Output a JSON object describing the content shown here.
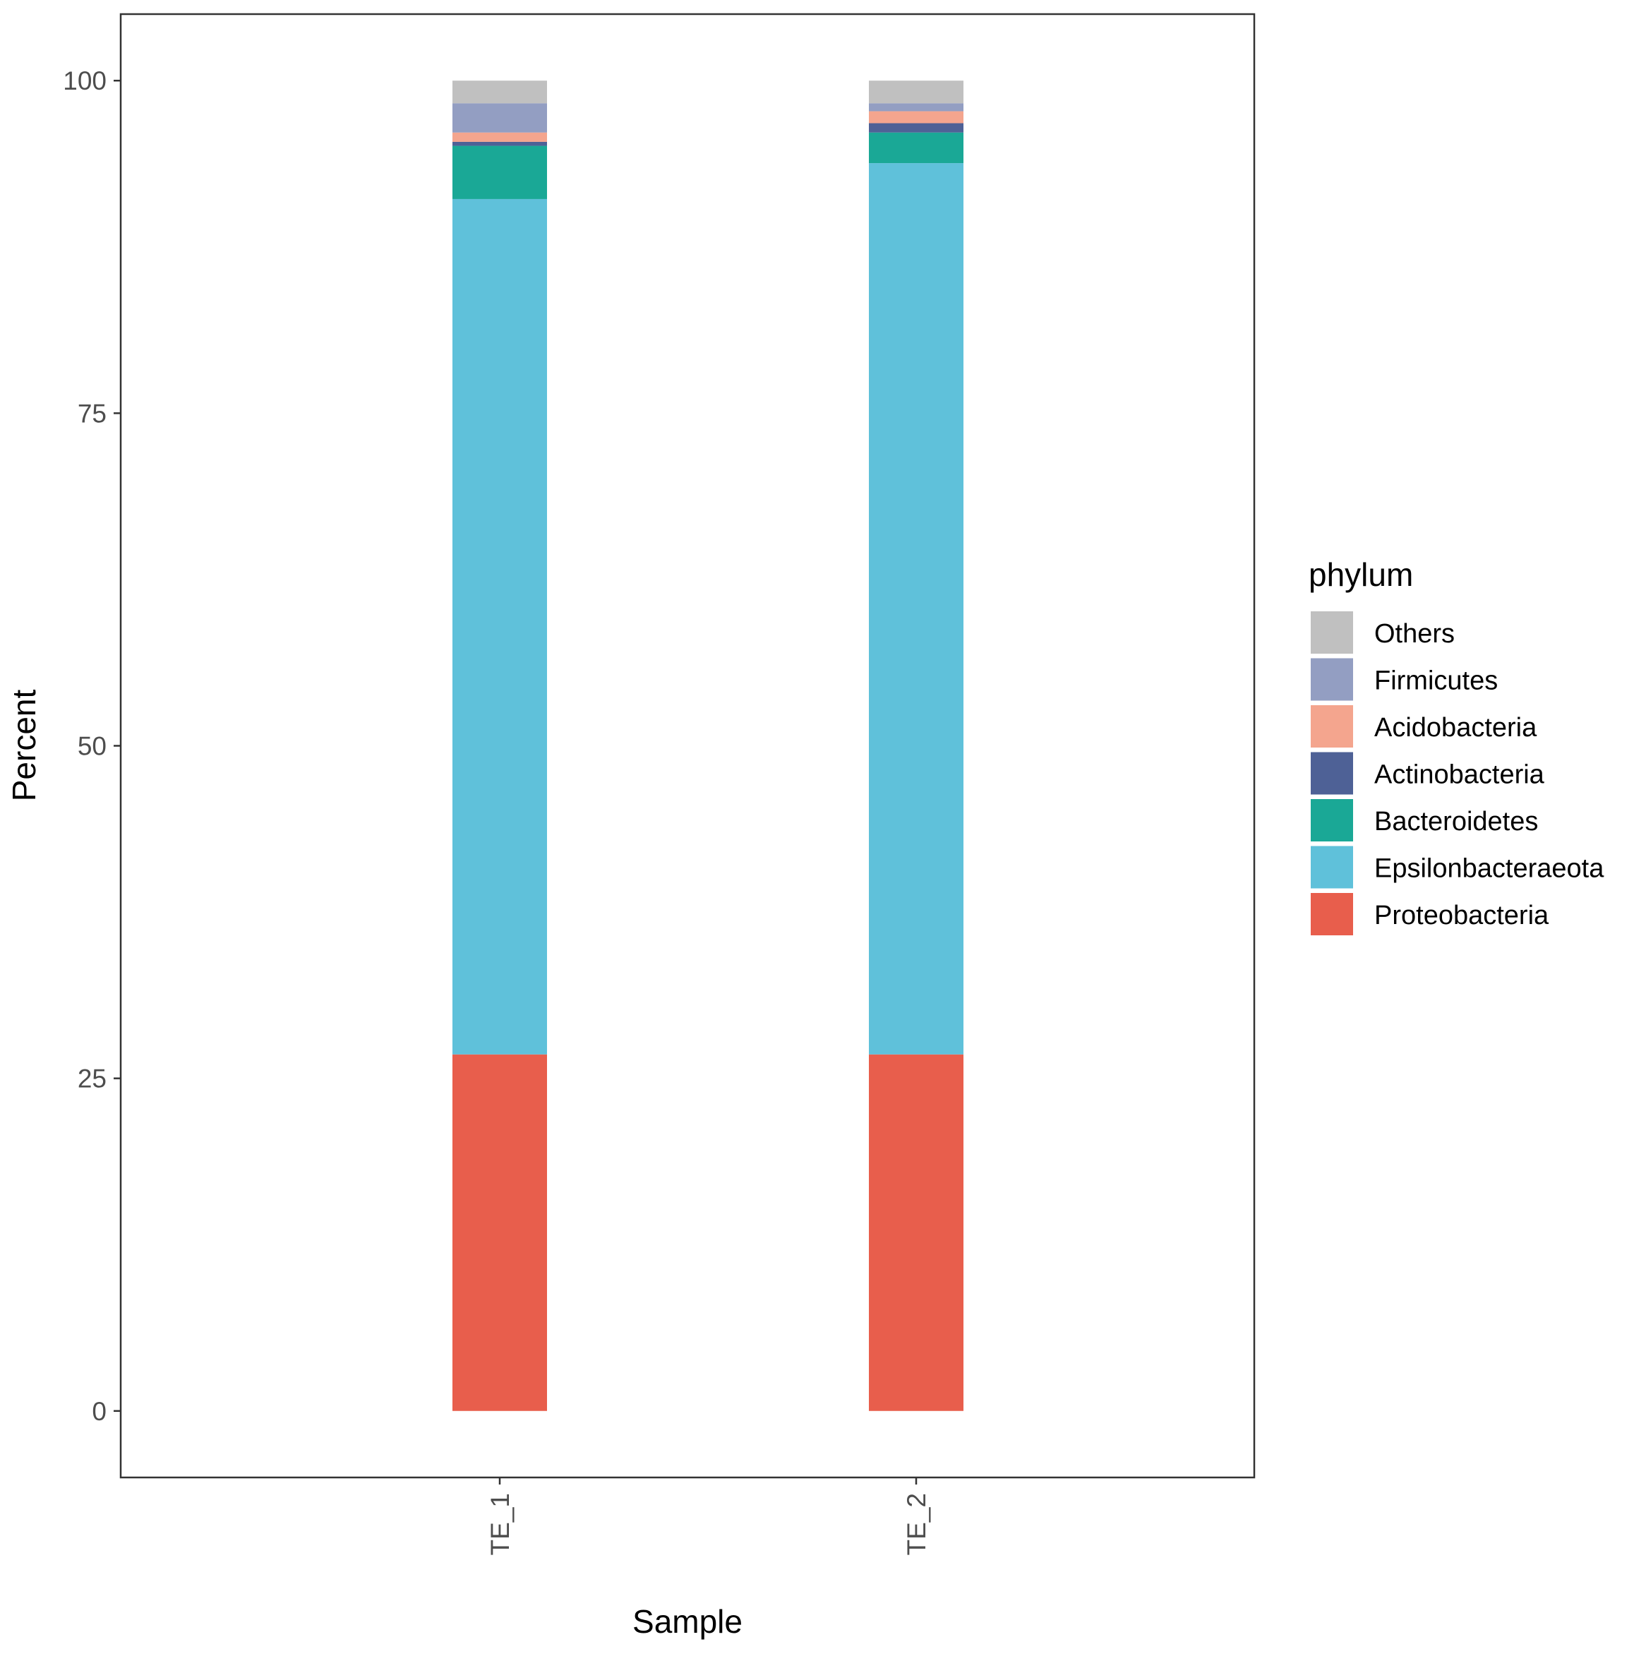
{
  "chart_data": {
    "type": "bar",
    "stacked": true,
    "xlabel": "Sample",
    "ylabel": "Percent",
    "categories": [
      "TE_1",
      "TE_2"
    ],
    "ylim": [
      -5,
      105
    ],
    "yticks": [
      0,
      25,
      50,
      75,
      100
    ],
    "grid": false,
    "legend": {
      "title": "phylum",
      "position": "right",
      "order": [
        "Others",
        "Firmicutes",
        "Acidobacteria",
        "Actinobacteria",
        "Bacteroidetes",
        "Epsilonbacteraeota",
        "Proteobacteria"
      ]
    },
    "series": [
      {
        "name": "Proteobacteria",
        "color": "#E85E4C",
        "values": [
          26.8,
          26.8
        ]
      },
      {
        "name": "Epsilonbacteraeota",
        "color": "#5FC1DA",
        "values": [
          64.3,
          67.0
        ]
      },
      {
        "name": "Bacteroidetes",
        "color": "#1AA896",
        "values": [
          4.0,
          2.3
        ]
      },
      {
        "name": "Actinobacteria",
        "color": "#4E6196",
        "values": [
          0.3,
          0.7
        ]
      },
      {
        "name": "Acidobacteria",
        "color": "#F4A58E",
        "values": [
          0.7,
          0.9
        ]
      },
      {
        "name": "Firmicutes",
        "color": "#939EC2",
        "values": [
          2.2,
          0.6
        ]
      },
      {
        "name": "Others",
        "color": "#C0C0C0",
        "values": [
          1.7,
          1.7
        ]
      }
    ]
  }
}
